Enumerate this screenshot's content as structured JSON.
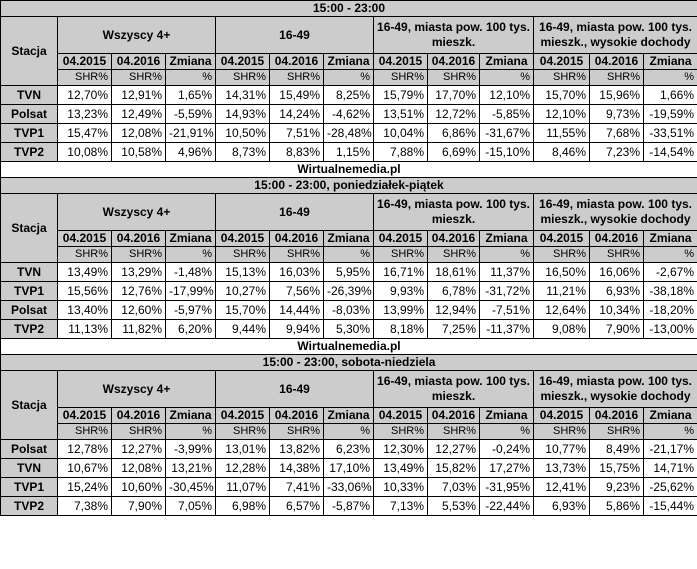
{
  "sections": [
    {
      "title": "15:00 - 23:00",
      "rows": [
        {
          "station": "TVN",
          "values": [
            "12,70%",
            "12,91%",
            "1,65%",
            "14,31%",
            "15,49%",
            "8,25%",
            "15,79%",
            "17,70%",
            "12,10%",
            "15,70%",
            "15,96%",
            "1,66%"
          ]
        },
        {
          "station": "Polsat",
          "values": [
            "13,23%",
            "12,49%",
            "-5,59%",
            "14,93%",
            "14,24%",
            "-4,62%",
            "13,51%",
            "12,72%",
            "-5,85%",
            "12,10%",
            "9,73%",
            "-19,59%"
          ]
        },
        {
          "station": "TVP1",
          "values": [
            "15,47%",
            "12,08%",
            "-21,91%",
            "10,50%",
            "7,51%",
            "-28,48%",
            "10,04%",
            "6,86%",
            "-31,67%",
            "11,55%",
            "7,68%",
            "-33,51%"
          ]
        },
        {
          "station": "TVP2",
          "values": [
            "10,08%",
            "10,58%",
            "4,96%",
            "8,73%",
            "8,83%",
            "1,15%",
            "7,88%",
            "6,69%",
            "-15,10%",
            "8,46%",
            "7,23%",
            "-14,54%"
          ]
        }
      ]
    },
    {
      "title": "15:00 - 23:00, poniedziałek-piątek",
      "rows": [
        {
          "station": "TVN",
          "values": [
            "13,49%",
            "13,29%",
            "-1,48%",
            "15,13%",
            "16,03%",
            "5,95%",
            "16,71%",
            "18,61%",
            "11,37%",
            "16,50%",
            "16,06%",
            "-2,67%"
          ]
        },
        {
          "station": "TVP1",
          "values": [
            "15,56%",
            "12,76%",
            "-17,99%",
            "10,27%",
            "7,56%",
            "-26,39%",
            "9,93%",
            "6,78%",
            "-31,72%",
            "11,21%",
            "6,93%",
            "-38,18%"
          ]
        },
        {
          "station": "Polsat",
          "values": [
            "13,40%",
            "12,60%",
            "-5,97%",
            "15,70%",
            "14,44%",
            "-8,03%",
            "13,99%",
            "12,94%",
            "-7,51%",
            "12,64%",
            "10,34%",
            "-18,20%"
          ]
        },
        {
          "station": "TVP2",
          "values": [
            "11,13%",
            "11,82%",
            "6,20%",
            "9,44%",
            "9,94%",
            "5,30%",
            "8,18%",
            "7,25%",
            "-11,37%",
            "9,08%",
            "7,90%",
            "-13,00%"
          ]
        }
      ]
    },
    {
      "title": "15:00 - 23:00, sobota-niedziela",
      "rows": [
        {
          "station": "Polsat",
          "values": [
            "12,78%",
            "12,27%",
            "-3,99%",
            "13,01%",
            "13,82%",
            "6,23%",
            "12,30%",
            "12,27%",
            "-0,24%",
            "10,77%",
            "8,49%",
            "-21,17%"
          ]
        },
        {
          "station": "TVN",
          "values": [
            "10,67%",
            "12,08%",
            "13,21%",
            "12,28%",
            "14,38%",
            "17,10%",
            "13,49%",
            "15,82%",
            "17,27%",
            "13,73%",
            "15,75%",
            "14,71%"
          ]
        },
        {
          "station": "TVP1",
          "values": [
            "15,24%",
            "10,60%",
            "-30,45%",
            "11,07%",
            "7,41%",
            "-33,06%",
            "10,33%",
            "7,03%",
            "-31,95%",
            "12,41%",
            "9,23%",
            "-25,62%"
          ]
        },
        {
          "station": "TVP2",
          "values": [
            "7,38%",
            "7,90%",
            "7,05%",
            "6,98%",
            "6,57%",
            "-5,87%",
            "7,13%",
            "5,53%",
            "-22,44%",
            "6,93%",
            "5,86%",
            "-15,44%"
          ]
        }
      ]
    }
  ],
  "header": {
    "stacja": "Stacja",
    "groups": [
      "Wszyscy 4+",
      "16-49",
      "16-49, miasta pow. 100 tys. mieszk.",
      "16-49, miasta pow. 100 tys. mieszk., wysokie dochody"
    ],
    "periods": [
      "04.2015",
      "04.2016",
      "Zmiana"
    ],
    "units": [
      "SHR%",
      "SHR%",
      "%"
    ]
  },
  "site_label": "Wirtualnemedia.pl"
}
